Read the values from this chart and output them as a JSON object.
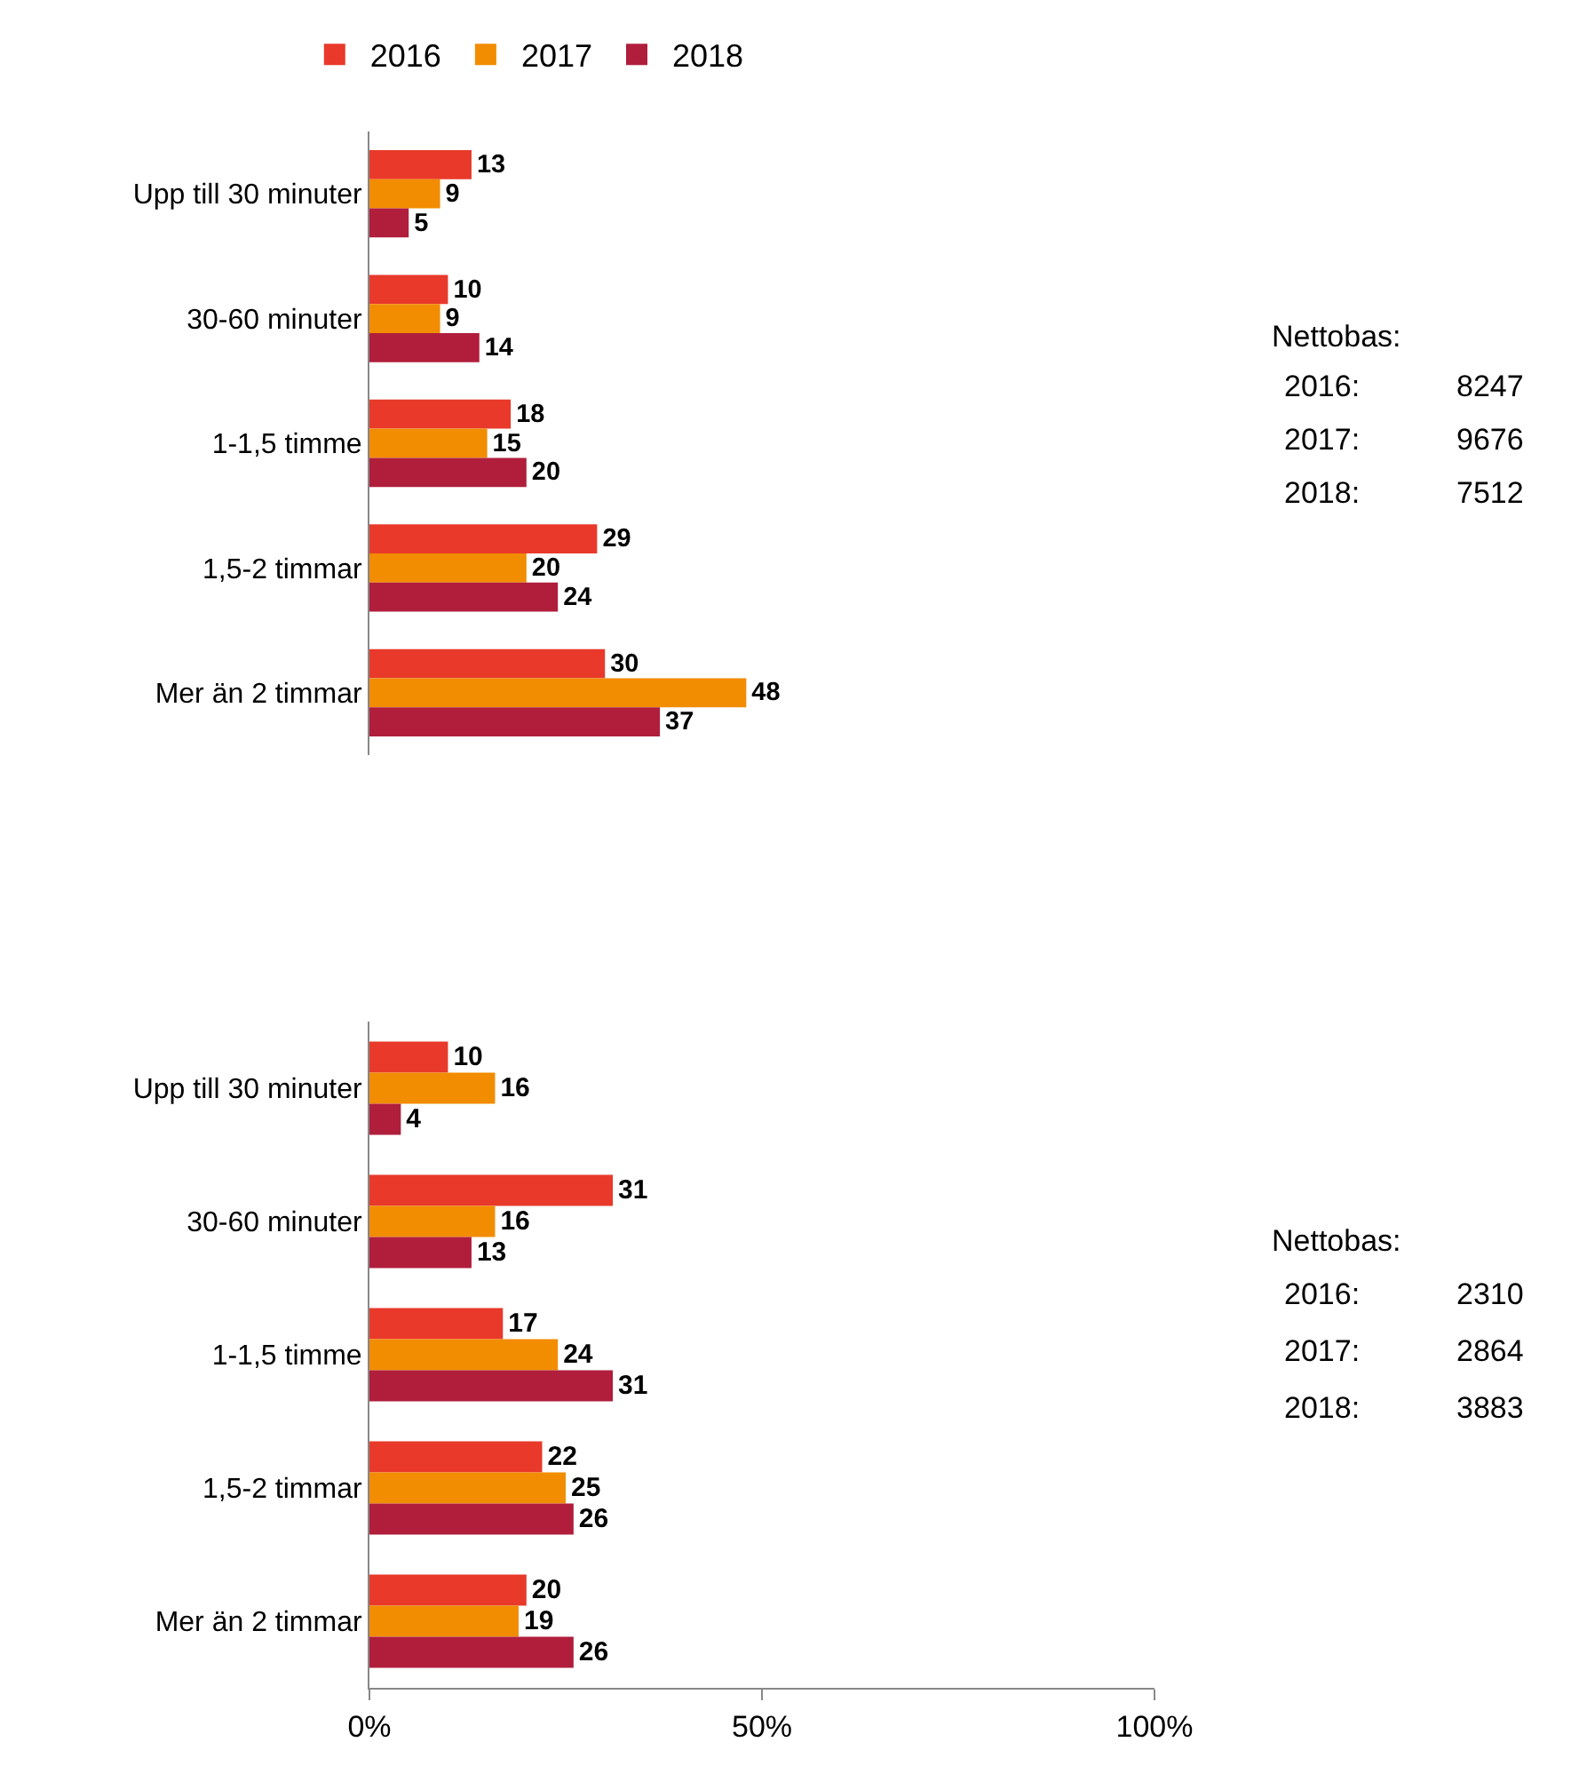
{
  "chart_data": [
    {
      "type": "bar",
      "orientation": "horizontal",
      "categories": [
        "Upp till 30 minuter",
        "30-60 minuter",
        "1-1,5 timme",
        "1,5-2 timmar",
        "Mer än 2 timmar"
      ],
      "series": [
        {
          "name": "2016",
          "color": "#e8392a",
          "values": [
            13,
            10,
            18,
            29,
            30
          ]
        },
        {
          "name": "2017",
          "color": "#f28c00",
          "values": [
            9,
            9,
            15,
            20,
            48
          ]
        },
        {
          "name": "2018",
          "color": "#b01e3c",
          "values": [
            5,
            14,
            20,
            24,
            37
          ]
        }
      ],
      "xlim": [
        0,
        100
      ],
      "tick_labels": "y",
      "data_labels": true,
      "grid": false,
      "legend": "top",
      "annotations": [
        "Nettobas:",
        "2016:",
        "8247",
        "2017:",
        "9676",
        "2018:",
        "7512"
      ]
    },
    {
      "type": "bar",
      "orientation": "horizontal",
      "categories": [
        "Upp till 30 minuter",
        "30-60 minuter",
        "1-1,5 timme",
        "1,5-2 timmar",
        "Mer än 2 timmar"
      ],
      "series": [
        {
          "name": "2016",
          "color": "#e8392a",
          "values": [
            10,
            31,
            17,
            22,
            20
          ]
        },
        {
          "name": "2017",
          "color": "#f28c00",
          "values": [
            16,
            16,
            24,
            25,
            19
          ]
        },
        {
          "name": "2018",
          "color": "#b01e3c",
          "values": [
            4,
            13,
            31,
            26,
            26
          ]
        }
      ],
      "xlim": [
        0,
        100
      ],
      "xticks": [
        {
          "value": 0,
          "label": "0%"
        },
        {
          "value": 50,
          "label": "50%"
        },
        {
          "value": 100,
          "label": "100%"
        }
      ],
      "data_labels": true,
      "grid": false,
      "legend": false,
      "annotations": [
        "Nettobas:",
        "2016:",
        "2310",
        "2017:",
        "2864",
        "2018:",
        "3883"
      ]
    }
  ]
}
